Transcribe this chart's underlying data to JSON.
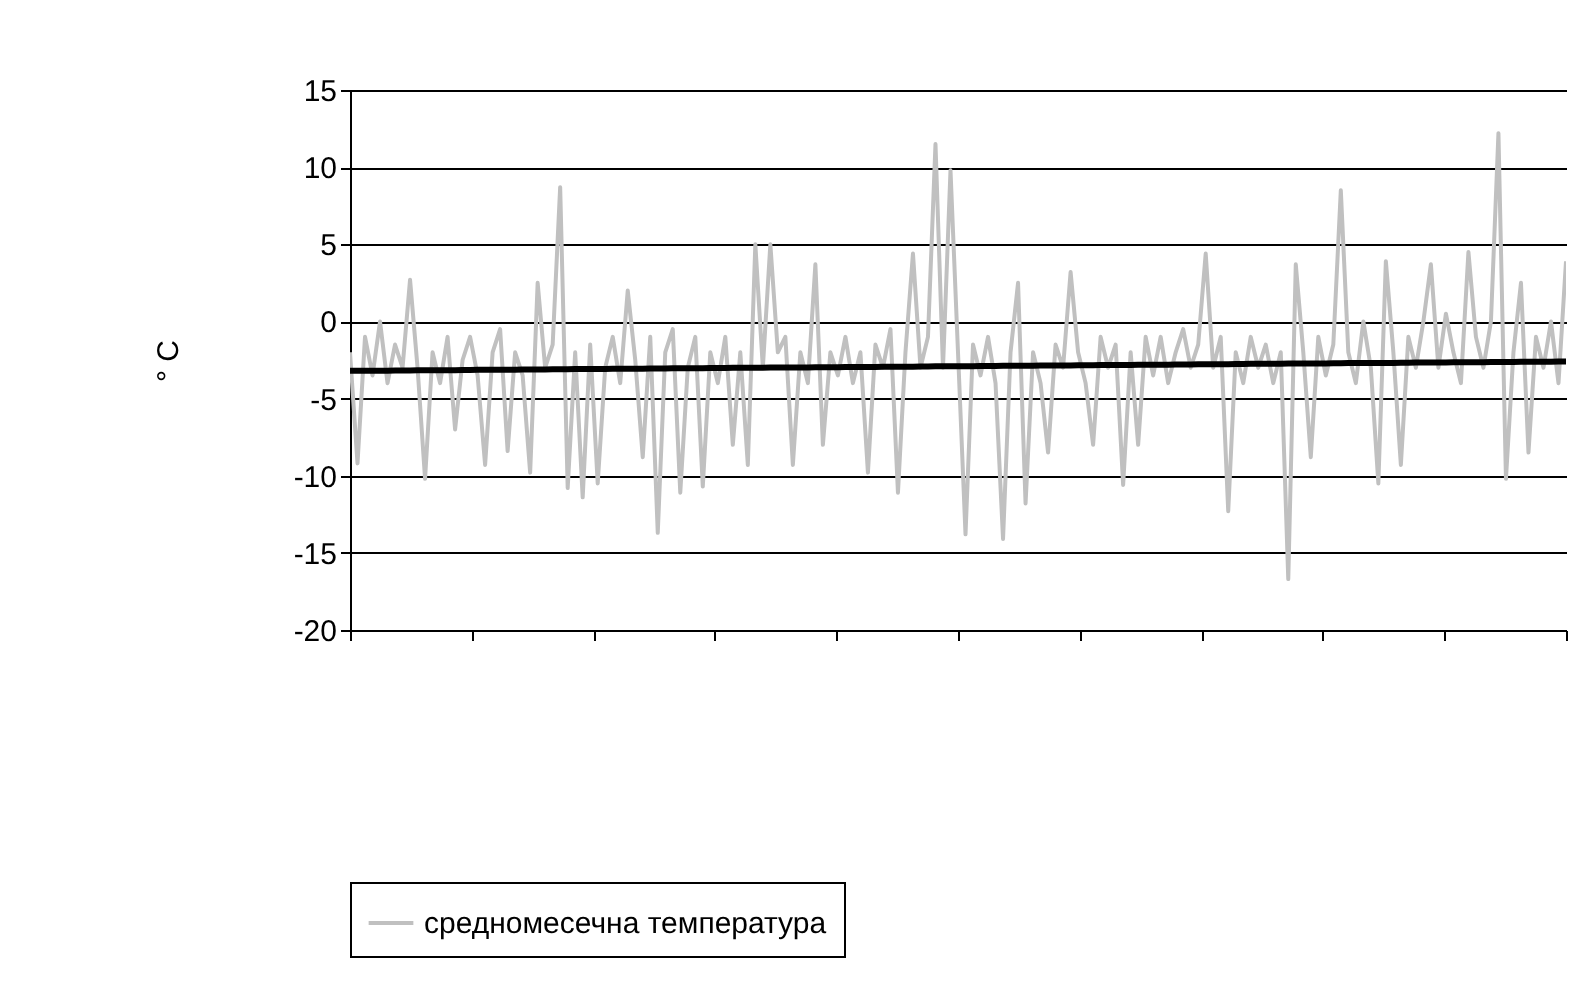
{
  "chart_data": {
    "type": "line",
    "ylabel": "° C",
    "categories": [
      null,
      null,
      null,
      null,
      null,
      null,
      null,
      null,
      null,
      null,
      null,
      null,
      null,
      null,
      null,
      null,
      null,
      null,
      null,
      null,
      null,
      null,
      null,
      null,
      null,
      null,
      null,
      null,
      null,
      null,
      null,
      null,
      null,
      null,
      null,
      null,
      null,
      null,
      null,
      null,
      null,
      null,
      null,
      null,
      null,
      null,
      null,
      null,
      null,
      null,
      null,
      null,
      null,
      null,
      null,
      null,
      null,
      null,
      null,
      null,
      null,
      null,
      null,
      null,
      null,
      null,
      null,
      null,
      null,
      null,
      null,
      null,
      null,
      null,
      null,
      null,
      null,
      null,
      null,
      null,
      null,
      null,
      null,
      null,
      null,
      null,
      null,
      null,
      null,
      null,
      null,
      null,
      null,
      null,
      null,
      null,
      null,
      null,
      null,
      null,
      null,
      null,
      null,
      null,
      null,
      null,
      null,
      null,
      null,
      null,
      null,
      null,
      null,
      null,
      null,
      null,
      null,
      null,
      null,
      null,
      null,
      null,
      null,
      null,
      null,
      null,
      null,
      null,
      null,
      null,
      null,
      null,
      null,
      null,
      null,
      null,
      null,
      null,
      null,
      null,
      null,
      null,
      null,
      null,
      null,
      null,
      null,
      null,
      null,
      null,
      null,
      null,
      null,
      null,
      null,
      null,
      null,
      null,
      null,
      null,
      null,
      null,
      null
    ],
    "series": [
      {
        "name": "средномесечна температура",
        "color": "#c0c0c0",
        "values": [
          -2,
          -9.2,
          -1,
          -3.5,
          0,
          -4,
          -1.5,
          -3,
          2.7,
          -3,
          -10.2,
          -2,
          -4,
          -1,
          -7,
          -2.5,
          -1,
          -3.5,
          -9.3,
          -2,
          -0.5,
          -8.4,
          -2,
          -3.5,
          -9.8,
          2.5,
          -3,
          -1.5,
          8.7,
          -10.8,
          -2,
          -11.4,
          -1.5,
          -10.5,
          -3,
          -1,
          -4,
          2,
          -2.5,
          -8.8,
          -1,
          -13.7,
          -2,
          -0.5,
          -11.1,
          -3,
          -1,
          -10.7,
          -2,
          -4,
          -1,
          -8,
          -2,
          -9.3,
          5,
          -3,
          5,
          -2,
          -1,
          -9.3,
          -2,
          -4,
          3.7,
          -8,
          -2,
          -3.5,
          -1,
          -4,
          -2,
          -9.8,
          -1.5,
          -3,
          -0.5,
          -11.1,
          -2,
          4.4,
          -3,
          -1,
          11.5,
          -3,
          9.8,
          -2,
          -13.8,
          -1.5,
          -3.5,
          -1,
          -4,
          -14.1,
          -2,
          2.5,
          -11.8,
          -2,
          -4,
          -8.5,
          -1.5,
          -3,
          3.2,
          -2,
          -4,
          -8,
          -1,
          -3,
          -1.5,
          -10.6,
          -2,
          -8,
          -1,
          -3.5,
          -1,
          -4,
          -2,
          -0.5,
          -3,
          -1.5,
          4.4,
          -3,
          -1,
          -12.3,
          -2,
          -4,
          -1,
          -3,
          -1.5,
          -4,
          -2,
          -16.7,
          3.7,
          -2,
          -8.8,
          -1,
          -3.5,
          -1.5,
          8.5,
          -2,
          -4,
          0,
          -3,
          -10.5,
          3.9,
          -2,
          -9.3,
          -1,
          -3,
          0,
          3.7,
          -3,
          0.5,
          -2,
          -4,
          4.5,
          -1,
          -3,
          0,
          12.2,
          -10.2,
          -2,
          2.5,
          -8.5,
          -1,
          -3,
          0,
          -4,
          3.9
        ]
      },
      {
        "type": "line",
        "color": "#000000",
        "values": [
          -3.2,
          -3.2,
          -3.19,
          -3.19,
          -3.19,
          -3.19,
          -3.18,
          -3.18,
          -3.18,
          -3.17,
          -3.17,
          -3.17,
          -3.16,
          -3.16,
          -3.16,
          -3.15,
          -3.15,
          -3.14,
          -3.14,
          -3.14,
          -3.13,
          -3.13,
          -3.13,
          -3.12,
          -3.12,
          -3.11,
          -3.11,
          -3.1,
          -3.1,
          -3.1,
          -3.09,
          -3.09,
          -3.09,
          -3.08,
          -3.08,
          -3.07,
          -3.07,
          -3.07,
          -3.06,
          -3.06,
          -3.05,
          -3.05,
          -3.05,
          -3.04,
          -3.04,
          -3.03,
          -3.03,
          -3.03,
          -3.02,
          -3.02,
          -3.02,
          -3.01,
          -3.01,
          -3.01,
          -3.0,
          -3.0,
          -2.99,
          -2.99,
          -2.99,
          -2.99,
          -2.98,
          -2.98,
          -2.97,
          -2.97,
          -2.97,
          -2.97,
          -2.96,
          -2.96,
          -2.95,
          -2.95,
          -2.95,
          -2.94,
          -2.94,
          -2.93,
          -2.93,
          -2.93,
          -2.92,
          -2.92,
          -2.91,
          -2.91,
          -2.91,
          -2.9,
          -2.9,
          -2.9,
          -2.89,
          -2.89,
          -2.89,
          -2.88,
          -2.88,
          -2.87,
          -2.87,
          -2.87,
          -2.86,
          -2.86,
          -2.85,
          -2.85,
          -2.85,
          -2.84,
          -2.84,
          -2.84,
          -2.83,
          -2.83,
          -2.83,
          -2.82,
          -2.82,
          -2.81,
          -2.81,
          -2.81,
          -2.8,
          -2.8,
          -2.79,
          -2.79,
          -2.79,
          -2.78,
          -2.78,
          -2.77,
          -2.77,
          -2.77,
          -2.76,
          -2.76,
          -2.75,
          -2.75,
          -2.75,
          -2.74,
          -2.74,
          -2.73,
          -2.73,
          -2.73,
          -2.73,
          -2.72,
          -2.72,
          -2.71,
          -2.71,
          -2.7,
          -2.7,
          -2.7,
          -2.69,
          -2.69,
          -2.69,
          -2.69,
          -2.68,
          -2.68,
          -2.67,
          -2.67,
          -2.66,
          -2.66,
          -2.66,
          -2.65,
          -2.65,
          -2.64,
          -2.64,
          -2.64,
          -2.63,
          -2.63,
          -2.63,
          -2.63,
          -2.62,
          -2.62,
          -2.61,
          -2.61,
          -2.61,
          -2.6,
          -2.6
        ]
      }
    ],
    "ylim": [
      -20,
      15
    ],
    "yticks": [
      -20,
      -15,
      -10,
      -5,
      0,
      5,
      10,
      15
    ],
    "tick_labels": "y",
    "grid": "y",
    "legend": "bottom",
    "marker": "none",
    "line_style": "solid"
  }
}
